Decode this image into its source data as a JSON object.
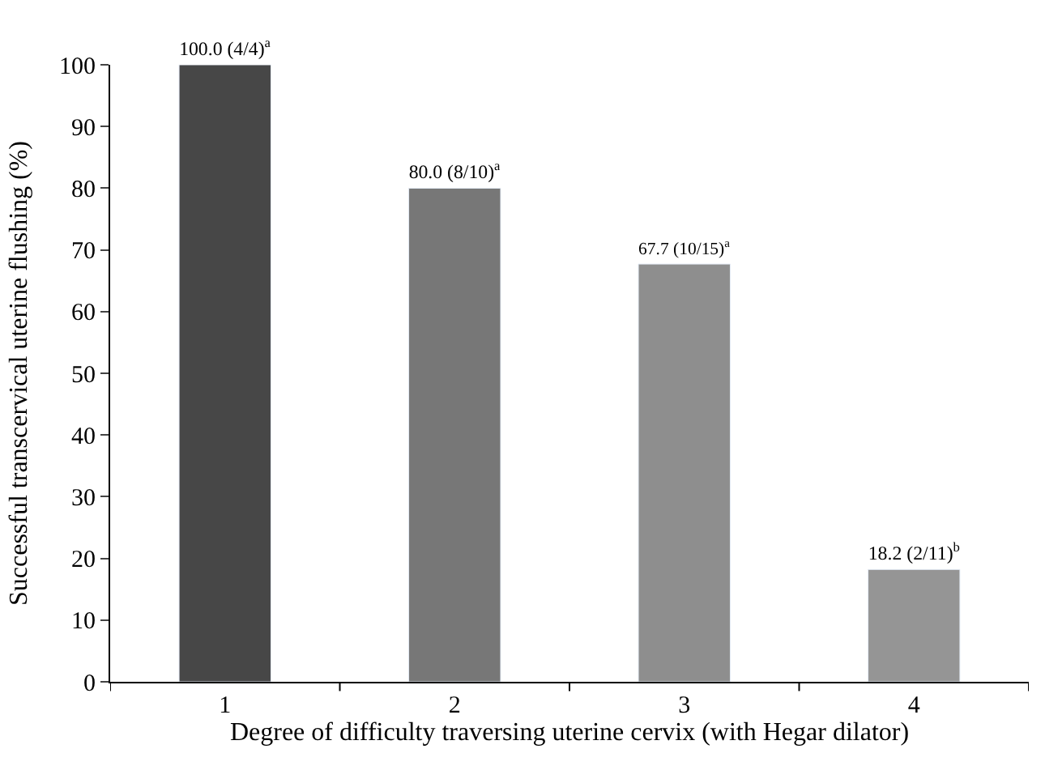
{
  "chart_data": {
    "type": "bar",
    "xlabel": "Degree of difficulty traversing uterine cervix (with Hegar dilator)",
    "ylabel": "Successful transcervical uterine flushing (%)",
    "categories": [
      "1",
      "2",
      "3",
      "4"
    ],
    "values": [
      100.0,
      80.0,
      67.7,
      18.2
    ],
    "colors": [
      "#474747",
      "#777777",
      "#8e8e8e",
      "#959595"
    ],
    "value_labels": [
      "100.0 (4/4)$^{a}$",
      "80.0 (8/10)$^{a}$",
      "67.7 (10/15)$^{a}$",
      "18.2 (2/11)$^{b}$"
    ],
    "ylim": [
      0,
      100
    ],
    "yticks": [
      0,
      10,
      20,
      30,
      40,
      50,
      60,
      70,
      80,
      90,
      100
    ]
  }
}
